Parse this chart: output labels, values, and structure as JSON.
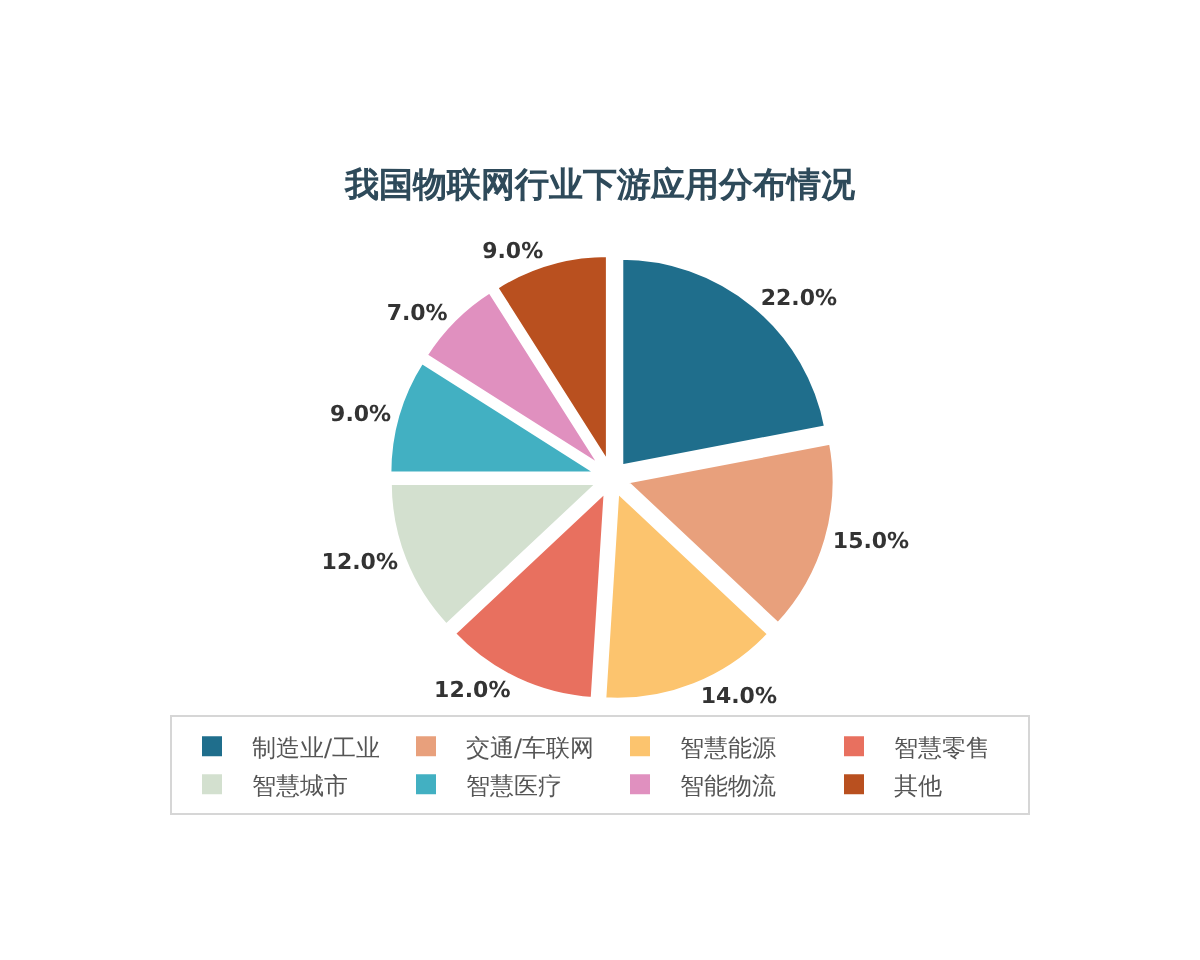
{
  "chart_data": {
    "type": "pie",
    "title": "我国物联网行业下游应用分布情况",
    "categories": [
      "制造业/工业",
      "交通/车联网",
      "智慧能源",
      "智慧零售",
      "智慧城市",
      "智慧医疗",
      "智能物流",
      "其他"
    ],
    "values": [
      22,
      15,
      14,
      12,
      12,
      9,
      7,
      9
    ],
    "colors": [
      "#1f6e8c",
      "#e8a07c",
      "#fcc46e",
      "#e8705f",
      "#d3e0cf",
      "#42b0c2",
      "#e090bf",
      "#b9501f"
    ],
    "value_labels": [
      "22.0%",
      "15.0%",
      "14.0%",
      "12.0%",
      "12.0%",
      "9.0%",
      "7.0%",
      "9.0%"
    ],
    "legend": "bottom"
  }
}
